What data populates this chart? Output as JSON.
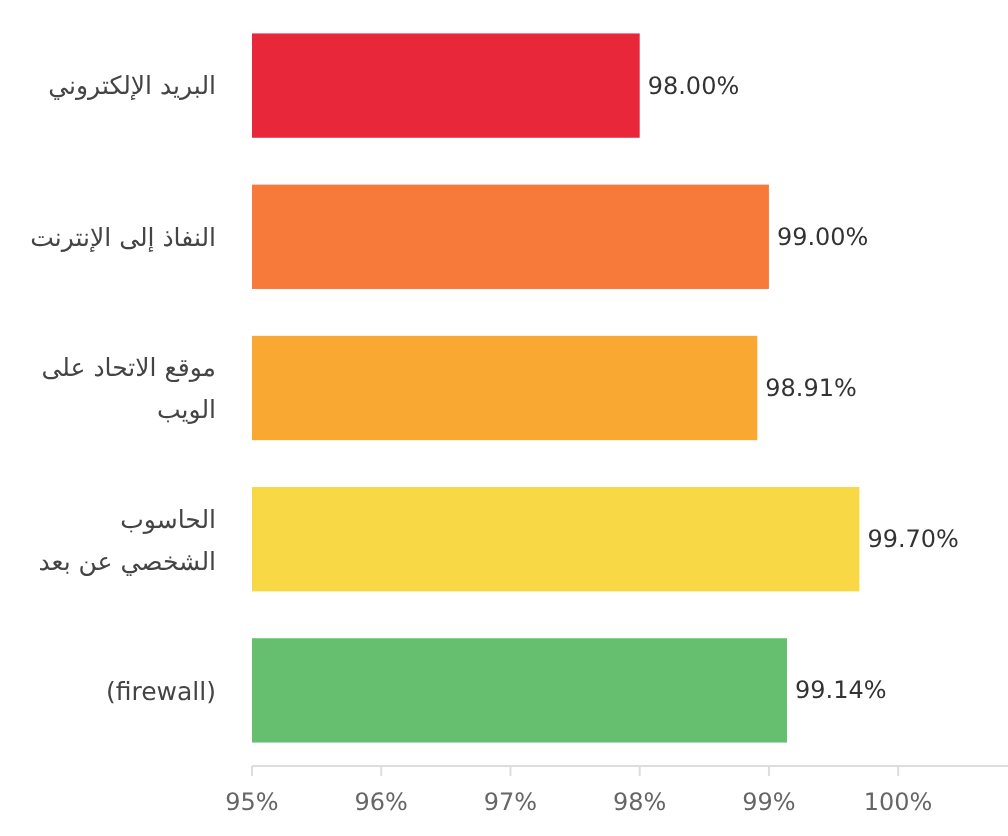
{
  "chart_data": {
    "type": "bar",
    "orientation": "horizontal",
    "categories": [
      "البريد الإلكتروني",
      "النفاذ إلى الإنترنت",
      "موقع الاتحاد على الويب",
      "الحاسوب الشخصي عن بعد",
      "(firewall)"
    ],
    "values": [
      98,
      99,
      98.91,
      99.7,
      99.14
    ],
    "colors": [
      "#e8283a",
      "#f77a3a",
      "#f9a832",
      "#f9d845",
      "#66bf6f"
    ],
    "value_labels": [
      "98.00%",
      "99.00%",
      "98.91%",
      "99.70%",
      "99.14%"
    ],
    "xlim": [
      95,
      100.85
    ],
    "xticks": [
      {
        "value": 95,
        "label": "95%"
      },
      {
        "value": 96,
        "label": "96%"
      },
      {
        "value": 97,
        "label": "97%"
      },
      {
        "value": 98,
        "label": "98%"
      },
      {
        "value": 99,
        "label": "99%"
      },
      {
        "value": 100,
        "label": "100%"
      }
    ],
    "grid": false
  }
}
